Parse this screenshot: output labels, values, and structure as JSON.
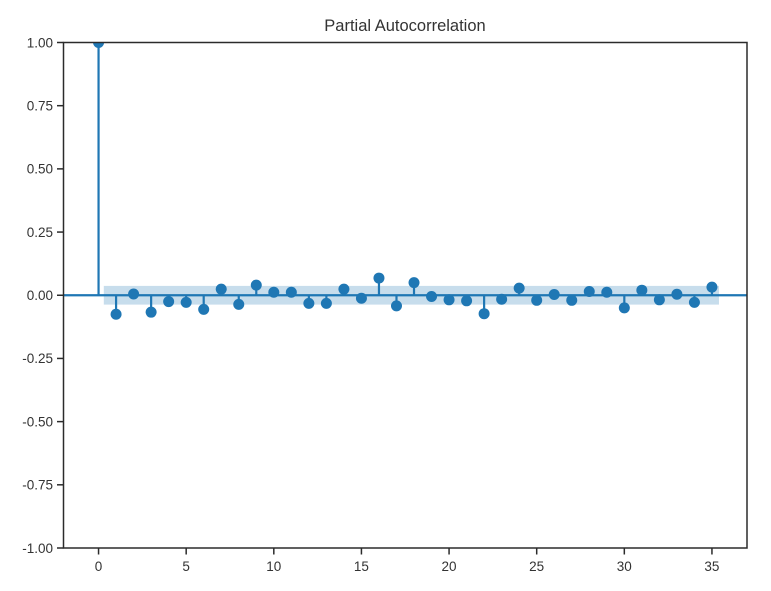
{
  "figure": {
    "background": "#ffffff"
  },
  "chart_data": {
    "type": "stem",
    "title": "Partial Autocorrelation",
    "xlabel": "",
    "ylabel": "",
    "x": [
      0,
      1,
      2,
      3,
      4,
      5,
      6,
      7,
      8,
      9,
      10,
      11,
      12,
      13,
      14,
      15,
      16,
      17,
      18,
      19,
      20,
      21,
      22,
      23,
      24,
      25,
      26,
      27,
      28,
      29,
      30,
      31,
      32,
      33,
      34,
      35
    ],
    "values": [
      1.0,
      -0.075,
      0.005,
      -0.067,
      -0.025,
      -0.028,
      -0.056,
      0.024,
      -0.036,
      0.04,
      0.012,
      0.012,
      -0.032,
      -0.032,
      0.024,
      -0.012,
      0.068,
      -0.042,
      0.05,
      -0.005,
      -0.018,
      -0.022,
      -0.073,
      -0.016,
      0.028,
      -0.02,
      0.003,
      -0.02,
      0.015,
      0.012,
      -0.05,
      0.02,
      -0.018,
      0.004,
      -0.028,
      0.032
    ],
    "confidence_band": {
      "lower": -0.037,
      "upper": 0.037,
      "x_start": 0.3,
      "x_end": 35.4
    },
    "xlim": [
      -2,
      37
    ],
    "ylim": [
      -1.0,
      1.0
    ],
    "xticks": [
      0,
      5,
      10,
      15,
      20,
      25,
      30,
      35
    ],
    "xtick_labels": [
      "0",
      "5",
      "10",
      "15",
      "20",
      "25",
      "30",
      "35"
    ],
    "yticks": [
      1.0,
      0.75,
      0.5,
      0.25,
      0.0,
      -0.25,
      -0.5,
      -0.75,
      -1.0
    ],
    "ytick_labels": [
      "1.00",
      "0.75",
      "0.50",
      "0.25",
      "0.00",
      "-0.25",
      "-0.50",
      "-0.75",
      "-1.00"
    ],
    "grid": false,
    "legend": null,
    "colors": {
      "stem": "#1f77b4",
      "marker": "#1f77b4",
      "zero_line": "#1f77b4",
      "band": "#1f77b4",
      "band_opacity": 0.25,
      "spine": "#2b2b2b",
      "tick_text": "#333333",
      "title_text": "#333333"
    }
  }
}
